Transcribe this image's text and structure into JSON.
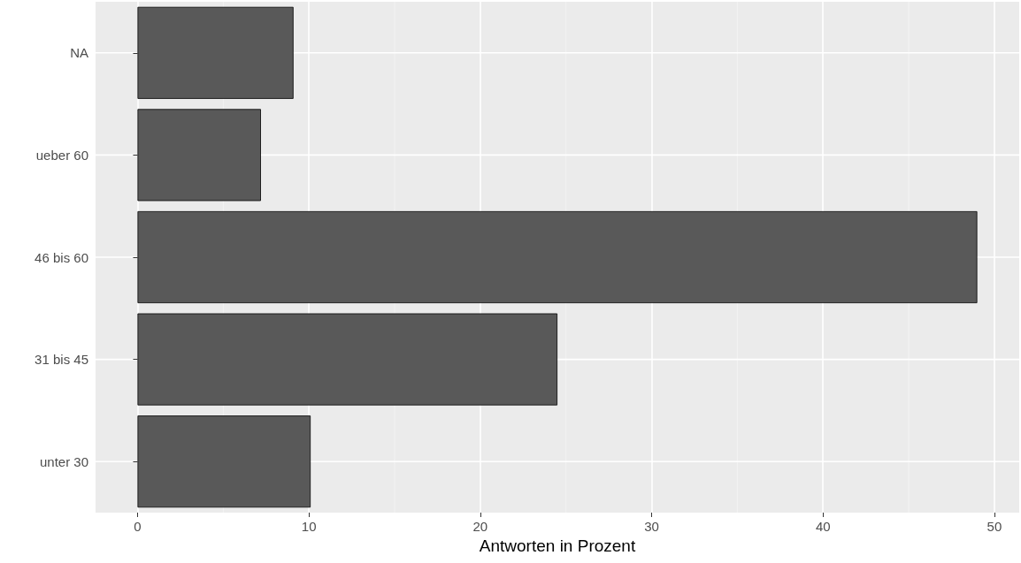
{
  "chart_data": {
    "type": "bar",
    "orientation": "horizontal",
    "xlabel": "Antworten in Prozent",
    "categories": [
      "NA",
      "ueber 60",
      "46 bis 60",
      "31 bis 45",
      "unter 30"
    ],
    "values": [
      9.1,
      7.2,
      49.0,
      24.5,
      10.1
    ],
    "color": "#595959",
    "xlim": [
      -2.45,
      51.45
    ],
    "xticks": [
      0,
      10,
      20,
      30,
      40,
      50
    ],
    "grid": true
  }
}
